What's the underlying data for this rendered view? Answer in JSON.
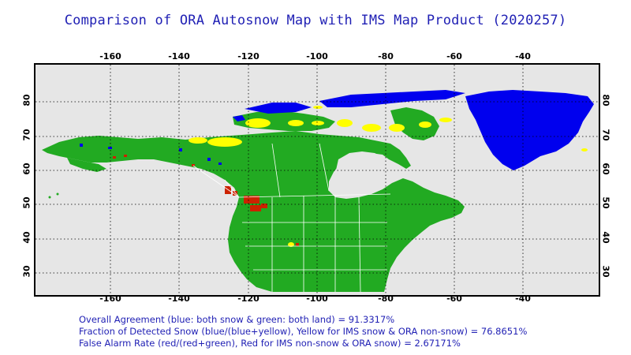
{
  "title": "Comparison of ORA Autosnow Map with IMS Map Product (2020257)",
  "longitude_ticks": [
    "-160",
    "-140",
    "-120",
    "-100",
    "-80",
    "-60",
    "-40"
  ],
  "latitude_ticks": [
    "80",
    "70",
    "60",
    "50",
    "40",
    "30"
  ],
  "stats": {
    "line1": "Overall Agreement (blue: both snow & green: both land) =  91.3317%",
    "line2": "Fraction of Detected Snow (blue/(blue+yellow), Yellow for IMS snow & ORA non-snow) = 76.8651%",
    "line3": "False Alarm Rate (red/(red+green), Red for IMS non-snow & ORA snow)  =  2.67171%"
  },
  "colors": {
    "background": "#e6e6e6",
    "land": "#22aa22",
    "both_snow": "#0000ee",
    "ims_snow_only": "#ffff00",
    "false_alarm": "#cc2200",
    "text": "#1f1fb4"
  }
}
